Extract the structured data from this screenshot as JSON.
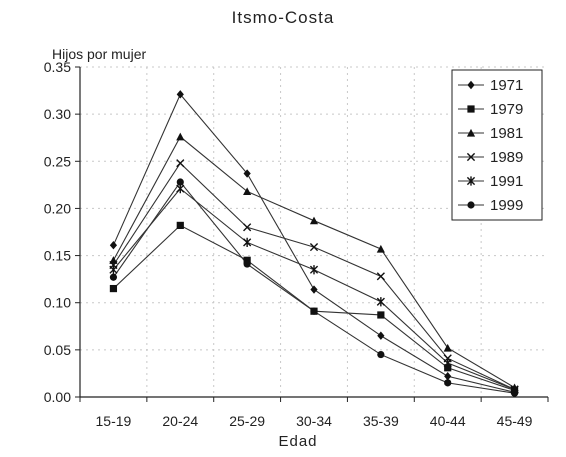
{
  "chart_data": {
    "type": "line",
    "title": "Itsmo-Costa",
    "ylabel": "Hijos por mujer",
    "xlabel": "Edad",
    "categories": [
      "15-19",
      "20-24",
      "25-29",
      "30-34",
      "35-39",
      "40-44",
      "45-49"
    ],
    "ylim": [
      0,
      0.35
    ],
    "yticks": [
      "0.00",
      "0.05",
      "0.10",
      "0.15",
      "0.20",
      "0.25",
      "0.30",
      "0.35"
    ],
    "grid": true,
    "legend_position": "top-right",
    "series": [
      {
        "name": "1971",
        "marker": "diamond",
        "values": [
          0.161,
          0.321,
          0.237,
          0.114,
          0.065,
          0.022,
          0.005
        ]
      },
      {
        "name": "1979",
        "marker": "square",
        "values": [
          0.115,
          0.182,
          0.145,
          0.091,
          0.087,
          0.031,
          0.007
        ]
      },
      {
        "name": "1981",
        "marker": "triangle",
        "values": [
          0.145,
          0.276,
          0.218,
          0.187,
          0.157,
          0.052,
          0.01
        ]
      },
      {
        "name": "1989",
        "marker": "x",
        "values": [
          0.14,
          0.248,
          0.18,
          0.159,
          0.128,
          0.041,
          0.008
        ]
      },
      {
        "name": "1991",
        "marker": "star",
        "values": [
          0.135,
          0.221,
          0.164,
          0.135,
          0.101,
          0.036,
          0.008
        ]
      },
      {
        "name": "1999",
        "marker": "circle",
        "values": [
          0.127,
          0.228,
          0.141,
          0.091,
          0.045,
          0.015,
          0.004
        ]
      }
    ]
  }
}
